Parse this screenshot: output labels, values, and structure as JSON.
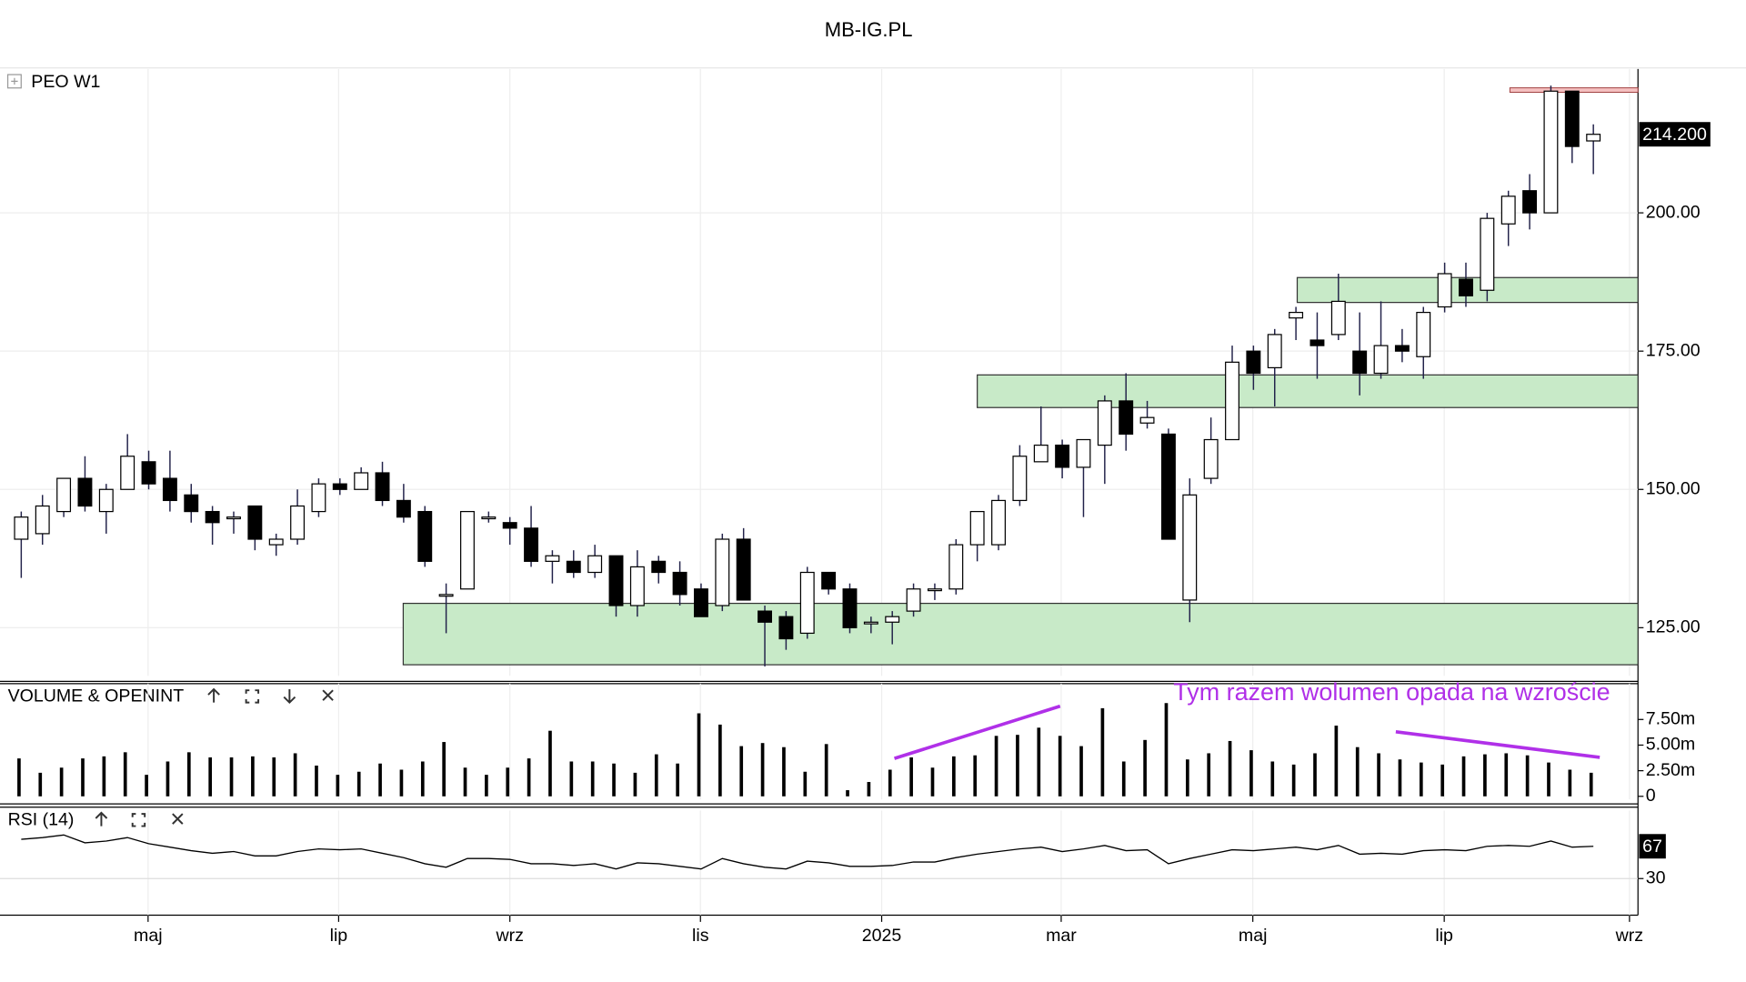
{
  "title": "MB-IG.PL",
  "chart_data": [
    {
      "type": "candlestick",
      "title": "PEO W1",
      "open": [
        141,
        142,
        146,
        152,
        146,
        150,
        155,
        152,
        149,
        146,
        145,
        147,
        140,
        141,
        146,
        151,
        150,
        153,
        148,
        146,
        131,
        132,
        145,
        144,
        143,
        137,
        137,
        135,
        138,
        129,
        137,
        135,
        132,
        129,
        141,
        128,
        127,
        124,
        135,
        132,
        126,
        126,
        128,
        132,
        132,
        140,
        140,
        148,
        155,
        158,
        154,
        158,
        166,
        162,
        160,
        130,
        152,
        159,
        175,
        172,
        181,
        177,
        178,
        175,
        171,
        176,
        174,
        183,
        188,
        186,
        198,
        204,
        200,
        222,
        213
      ],
      "high": [
        146,
        149,
        152,
        156,
        151,
        160,
        157,
        157,
        151,
        147,
        146,
        147,
        142,
        150,
        152,
        152,
        154,
        155,
        151,
        147,
        133,
        146,
        146,
        145,
        147,
        139,
        139,
        140,
        138,
        139,
        138,
        137,
        133,
        142,
        143,
        129,
        128,
        136,
        135,
        133,
        127,
        128,
        133,
        133,
        141,
        146,
        149,
        158,
        165,
        159,
        159,
        167,
        171,
        166,
        161,
        152,
        163,
        176,
        176,
        179,
        183,
        182,
        189,
        182,
        184,
        179,
        183,
        191,
        191,
        200,
        204,
        207,
        223,
        222,
        216
      ],
      "low": [
        134,
        140,
        145,
        146,
        142,
        150,
        150,
        146,
        144,
        140,
        142,
        139,
        138,
        140,
        145,
        149,
        150,
        147,
        144,
        136,
        124,
        132,
        144,
        140,
        136,
        133,
        134,
        134,
        127,
        127,
        133,
        129,
        127,
        128,
        130,
        118,
        121,
        123,
        131,
        124,
        124,
        122,
        127,
        130,
        131,
        137,
        139,
        147,
        155,
        152,
        145,
        151,
        157,
        161,
        141,
        126,
        151,
        159,
        168,
        165,
        177,
        170,
        177,
        167,
        170,
        173,
        170,
        182,
        183,
        184,
        194,
        197,
        200,
        209,
        207
      ],
      "close": [
        145,
        147,
        152,
        147,
        150,
        156,
        151,
        148,
        146,
        144,
        145,
        141,
        141,
        147,
        151,
        150,
        153,
        148,
        145,
        137,
        131,
        146,
        145,
        143,
        137,
        138,
        135,
        138,
        129,
        136,
        135,
        131,
        127,
        141,
        130,
        126,
        123,
        135,
        132,
        125,
        126,
        127,
        132,
        132,
        140,
        146,
        148,
        156,
        158,
        154,
        159,
        166,
        160,
        163,
        141,
        149,
        159,
        173,
        171,
        178,
        182,
        176,
        184,
        171,
        176,
        175,
        182,
        189,
        185,
        199,
        203,
        200,
        222,
        212,
        214.2
      ],
      "last_label": "214.200",
      "up_color": "#ffffff",
      "down_color": "#000000",
      "xlim": [
        -1.0,
        76.1
      ],
      "ylim": [
        116.3,
        226
      ],
      "yticks": [
        {
          "value": 125,
          "label": "125.00"
        },
        {
          "value": 150,
          "label": "150.00"
        },
        {
          "value": 175,
          "label": "175.00"
        },
        {
          "value": 200,
          "label": "200.00"
        }
      ],
      "grid": true,
      "zones": [
        {
          "start": 17.98,
          "low": 118.3,
          "high": 129.4
        },
        {
          "start": 45.0,
          "low": 164.8,
          "high": 170.7
        },
        {
          "start": 60.06,
          "low": 183.8,
          "high": 188.3
        }
      ],
      "zone_color": "#c8eac8",
      "resistance": {
        "start": 70.07,
        "value": 222.2,
        "color": "#f4c0c0"
      }
    },
    {
      "type": "bar",
      "title": "VOLUME & OPENINT",
      "values": [
        3.7,
        2.3,
        2.8,
        3.7,
        3.9,
        4.3,
        2.1,
        3.4,
        4.3,
        3.8,
        3.8,
        3.9,
        3.8,
        4.2,
        3.0,
        2.1,
        2.4,
        3.2,
        2.6,
        3.4,
        5.3,
        2.8,
        2.1,
        2.8,
        3.7,
        6.4,
        3.4,
        3.4,
        3.2,
        2.3,
        4.1,
        3.2,
        8.1,
        7.0,
        4.9,
        5.2,
        4.8,
        2.4,
        5.1,
        0.6,
        1.4,
        2.6,
        3.8,
        2.8,
        3.9,
        4.0,
        5.9,
        6.0,
        6.7,
        5.9,
        4.9,
        8.6,
        3.4,
        5.5,
        9.1,
        3.6,
        4.2,
        5.4,
        4.5,
        3.4,
        3.1,
        4.2,
        6.9,
        4.8,
        4.2,
        3.6,
        3.3,
        3.1,
        3.9,
        4.1,
        4.2,
        4.0,
        3.3,
        2.6,
        2.3
      ],
      "color": "#000000",
      "xlim": [
        -1.0,
        76.1
      ],
      "ylim": [
        -0.3,
        11
      ],
      "yticks": [
        0,
        {
          "value": 2.5,
          "label": "2.50m"
        },
        {
          "value": 5,
          "label": "5.00m"
        },
        {
          "value": 7.5,
          "label": "7.50m"
        }
      ],
      "annotation": "Tym razem wolumen opada na wzroście",
      "annotation_color": "#b030e8",
      "trend_lines": [
        {
          "x": [
            41.1,
            48.9
          ],
          "y": [
            3.7,
            8.8
          ]
        },
        {
          "x": [
            64.7,
            74.3
          ],
          "y": [
            6.3,
            3.8
          ]
        }
      ]
    },
    {
      "type": "line",
      "title": "RSI (14)",
      "values": [
        75,
        77,
        80,
        71,
        73,
        77,
        70,
        66,
        62,
        59,
        61,
        56,
        56,
        61,
        64,
        63,
        64,
        59,
        54,
        47,
        43,
        53,
        53,
        52,
        47,
        47,
        45,
        47,
        41,
        48,
        47,
        44,
        41,
        53,
        47,
        43,
        41,
        50,
        48,
        44,
        44,
        45,
        49,
        49,
        54,
        58,
        61,
        64,
        66,
        61,
        64,
        68,
        62,
        63,
        47,
        53,
        58,
        63,
        62,
        64,
        66,
        63,
        68,
        58,
        59,
        58,
        62,
        63,
        62,
        67,
        68,
        67,
        73,
        66,
        67
      ],
      "color": "#000000",
      "xlim": [
        -1.0,
        76.1
      ],
      "ylim": [
        -12,
        108
      ],
      "yticks": [
        30
      ],
      "xticks": [
        {
          "value": 5.97,
          "label": "maj"
        },
        {
          "value": 14.94,
          "label": "lip"
        },
        {
          "value": 23.0,
          "label": "wrz"
        },
        {
          "value": 31.97,
          "label": "lis"
        },
        {
          "value": 40.5,
          "label": "2025"
        },
        {
          "value": 48.95,
          "label": "mar"
        },
        {
          "value": 57.97,
          "label": "maj"
        },
        {
          "value": 66.98,
          "label": "lip"
        },
        {
          "value": 75.7,
          "label": "wrz"
        }
      ]
    }
  ]
}
